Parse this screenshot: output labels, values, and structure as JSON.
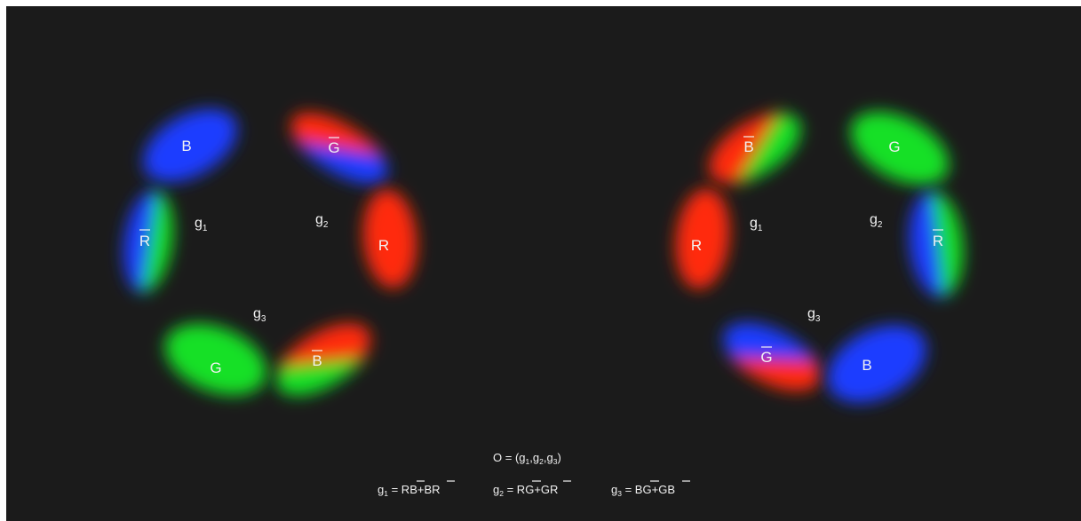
{
  "colors": {
    "background": "#1b1b1b",
    "red": "#ff2a10",
    "green": "#18e028",
    "blue": "#1a3cff",
    "text": "#f2f2f2"
  },
  "diagrams": [
    {
      "name": "left-ring",
      "lobes": [
        {
          "label": "B",
          "bar": false,
          "colors": [
            "blue"
          ]
        },
        {
          "label": "G",
          "bar": true,
          "colors": [
            "red",
            "blue"
          ]
        },
        {
          "label": "R",
          "bar": true,
          "colors": [
            "blue",
            "green"
          ]
        },
        {
          "label": "R",
          "bar": false,
          "colors": [
            "red"
          ]
        },
        {
          "label": "G",
          "bar": false,
          "colors": [
            "green"
          ]
        },
        {
          "label": "B",
          "bar": true,
          "colors": [
            "red",
            "green"
          ]
        }
      ],
      "gluons": [
        {
          "letter": "g",
          "sub": "1"
        },
        {
          "letter": "g",
          "sub": "2"
        },
        {
          "letter": "g",
          "sub": "3"
        }
      ]
    },
    {
      "name": "right-ring",
      "lobes": [
        {
          "label": "B",
          "bar": true,
          "colors": [
            "red",
            "green"
          ]
        },
        {
          "label": "G",
          "bar": false,
          "colors": [
            "green"
          ]
        },
        {
          "label": "R",
          "bar": false,
          "colors": [
            "red"
          ]
        },
        {
          "label": "R",
          "bar": true,
          "colors": [
            "blue",
            "green"
          ]
        },
        {
          "label": "G",
          "bar": true,
          "colors": [
            "blue",
            "red"
          ]
        },
        {
          "label": "B",
          "bar": false,
          "colors": [
            "blue"
          ]
        }
      ],
      "gluons": [
        {
          "letter": "g",
          "sub": "1"
        },
        {
          "letter": "g",
          "sub": "2"
        },
        {
          "letter": "g",
          "sub": "3"
        }
      ]
    }
  ],
  "caption": {
    "octet": {
      "lhs": "O",
      "eq": " = (",
      "g": "g",
      "s1": "1",
      "sep1": ",",
      "s2": "2",
      "sep2": ",",
      "s3": "3",
      "close": ")"
    },
    "formulas": [
      {
        "g": "g",
        "sub": "1",
        "eq": " = ",
        "a": "R",
        "abar": "B",
        "plus": "+",
        "b": "B",
        "bbar": "R"
      },
      {
        "g": "g",
        "sub": "2",
        "eq": " = ",
        "a": "R",
        "abar": "G",
        "plus": "+",
        "b": "G",
        "bbar": "R"
      },
      {
        "g": "g",
        "sub": "3",
        "eq": " = ",
        "a": "B",
        "abar": "G",
        "plus": "+",
        "b": "G",
        "bbar": "B"
      }
    ]
  }
}
